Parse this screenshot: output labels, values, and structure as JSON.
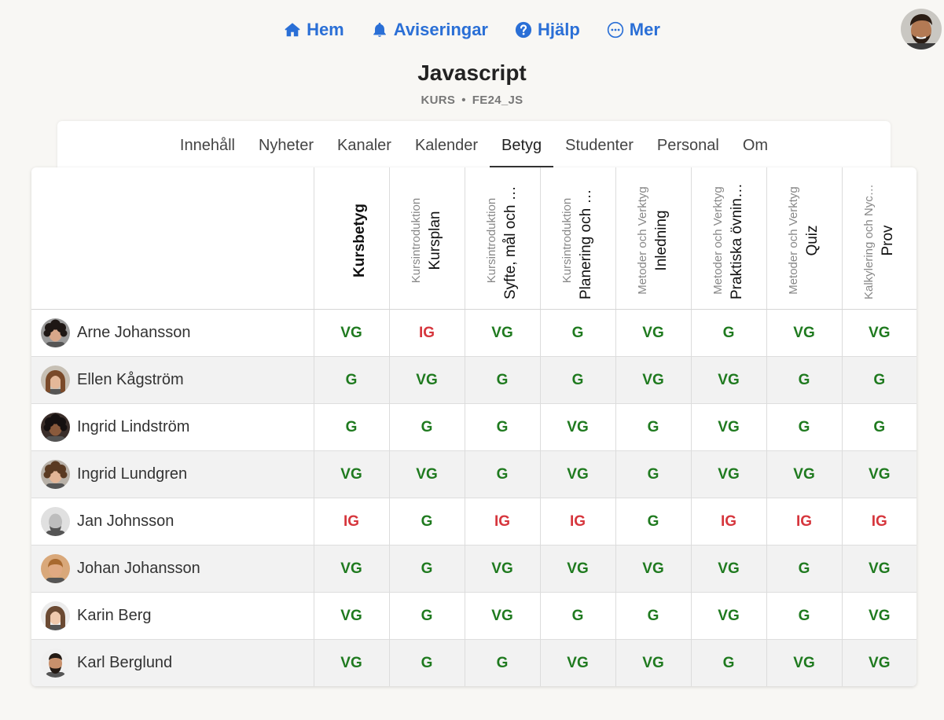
{
  "nav": {
    "items": [
      {
        "label": "Hem",
        "icon": "home-icon"
      },
      {
        "label": "Aviseringar",
        "icon": "bell-icon"
      },
      {
        "label": "Hjälp",
        "icon": "help-icon"
      },
      {
        "label": "Mer",
        "icon": "more-icon"
      }
    ],
    "accent": "#2a6fd6"
  },
  "course": {
    "title": "Javascript",
    "kind": "KURS",
    "separator": "•",
    "code": "FE24_JS"
  },
  "tabs": [
    {
      "label": "Innehåll",
      "active": false
    },
    {
      "label": "Nyheter",
      "active": false
    },
    {
      "label": "Kanaler",
      "active": false
    },
    {
      "label": "Kalender",
      "active": false
    },
    {
      "label": "Betyg",
      "active": true
    },
    {
      "label": "Studenter",
      "active": false
    },
    {
      "label": "Personal",
      "active": false
    },
    {
      "label": "Om",
      "active": false
    }
  ],
  "columns": [
    {
      "category": "",
      "name": "Kursbetyg",
      "total": true
    },
    {
      "category": "Kursintroduktion",
      "name": "Kursplan"
    },
    {
      "category": "Kursintroduktion",
      "name": "Syfte, mål och metod"
    },
    {
      "category": "Kursintroduktion",
      "name": "Planering och upplägg"
    },
    {
      "category": "Metoder och Verktyg",
      "name": "Inledning"
    },
    {
      "category": "Metoder och Verktyg",
      "name": "Praktiska övningar"
    },
    {
      "category": "Metoder och Verktyg",
      "name": "Quiz"
    },
    {
      "category": "Kalkylering och Nyckeltal",
      "name": "Prov"
    }
  ],
  "students": [
    {
      "name": "Arne Johansson",
      "avatar": "avatar-arne",
      "grades": [
        "VG",
        "IG",
        "VG",
        "G",
        "VG",
        "G",
        "VG",
        "VG"
      ]
    },
    {
      "name": "Ellen Kågström",
      "avatar": "avatar-ellen",
      "grades": [
        "G",
        "VG",
        "G",
        "G",
        "VG",
        "VG",
        "G",
        "G"
      ]
    },
    {
      "name": "Ingrid Lindström",
      "avatar": "avatar-ingrid-lindstrom",
      "grades": [
        "G",
        "G",
        "G",
        "VG",
        "G",
        "VG",
        "G",
        "G"
      ]
    },
    {
      "name": "Ingrid Lundgren",
      "avatar": "avatar-ingrid-lundgren",
      "grades": [
        "VG",
        "VG",
        "G",
        "VG",
        "G",
        "VG",
        "VG",
        "VG"
      ]
    },
    {
      "name": "Jan Johnsson",
      "avatar": "avatar-jan",
      "grades": [
        "IG",
        "G",
        "IG",
        "IG",
        "G",
        "IG",
        "IG",
        "IG"
      ]
    },
    {
      "name": "Johan Johansson",
      "avatar": "avatar-johan",
      "grades": [
        "VG",
        "G",
        "VG",
        "VG",
        "VG",
        "VG",
        "G",
        "VG"
      ]
    },
    {
      "name": "Karin Berg",
      "avatar": "avatar-karin",
      "grades": [
        "VG",
        "G",
        "VG",
        "G",
        "G",
        "VG",
        "G",
        "VG"
      ]
    },
    {
      "name": "Karl Berglund",
      "avatar": "avatar-karl",
      "grades": [
        "VG",
        "G",
        "G",
        "VG",
        "VG",
        "G",
        "VG",
        "VG"
      ]
    }
  ],
  "colors": {
    "pass": "#1f7a1f",
    "fail": "#d6363d"
  }
}
